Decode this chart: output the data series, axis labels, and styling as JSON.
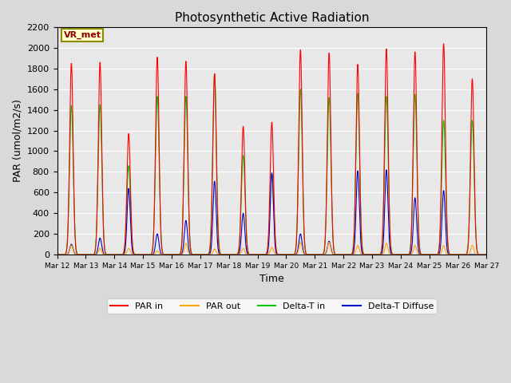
{
  "title": "Photosynthetic Active Radiation",
  "xlabel": "Time",
  "ylabel": "PAR (umol/m2/s)",
  "ylim": [
    0,
    2200
  ],
  "annotation_text": "VR_met",
  "plot_bg_color": "#e8e8e8",
  "fig_bg_color": "#d9d9d9",
  "legend_entries": [
    "PAR in",
    "PAR out",
    "Delta-T in",
    "Delta-T Diffuse"
  ],
  "legend_colors": [
    "#ff0000",
    "#ffa500",
    "#00cc00",
    "#0000cc"
  ],
  "x_tick_labels": [
    "Mar 12",
    "Mar 13",
    "Mar 14",
    "Mar 15",
    "Mar 16",
    "Mar 17",
    "Mar 18",
    "Mar 19",
    "Mar 20",
    "Mar 21",
    "Mar 22",
    "Mar 23",
    "Mar 24",
    "Mar 25",
    "Mar 26",
    "Mar 27"
  ],
  "par_in_peaks": [
    1850,
    1860,
    1170,
    1910,
    1870,
    1750,
    1240,
    1280,
    1980,
    1950,
    1840,
    1990,
    1960,
    2040,
    1700
  ],
  "par_out_peaks": [
    90,
    60,
    60,
    35,
    110,
    55,
    60,
    70,
    120,
    120,
    90,
    110,
    90,
    90,
    90
  ],
  "delta_t_peaks": [
    1440,
    1450,
    860,
    1530,
    1530,
    1740,
    960,
    780,
    1600,
    1520,
    1560,
    1530,
    1550,
    1300,
    1300
  ],
  "delta_t_diff_peaks": [
    100,
    160,
    640,
    200,
    330,
    710,
    400,
    790,
    200,
    130,
    810,
    820,
    550,
    620,
    0
  ],
  "sigma_par": 0.06,
  "sigma_green": 0.065,
  "sigma_blue": 0.055,
  "sigma_orange": 0.05,
  "pts_per_day": 288,
  "n_days": 15
}
